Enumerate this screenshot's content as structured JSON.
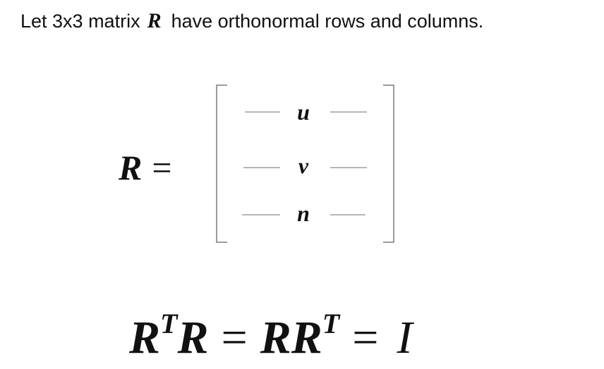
{
  "statement": {
    "prefix": "Let 3x3 matrix",
    "variable": "R",
    "suffix": "have orthonormal rows and columns."
  },
  "matrix_definition": {
    "lhs_variable": "R",
    "equals": "=",
    "rows": [
      {
        "label": "u"
      },
      {
        "label": "v"
      },
      {
        "label": "n"
      }
    ]
  },
  "identity": {
    "term1_base": "R",
    "term1_sup": "T",
    "term2": "R",
    "equals1": "=",
    "term3": "R",
    "term4_base": "R",
    "term4_sup": "T",
    "equals2": "=",
    "result": "I"
  },
  "colors": {
    "text": "#111111",
    "rule": "#7a7a7a"
  }
}
